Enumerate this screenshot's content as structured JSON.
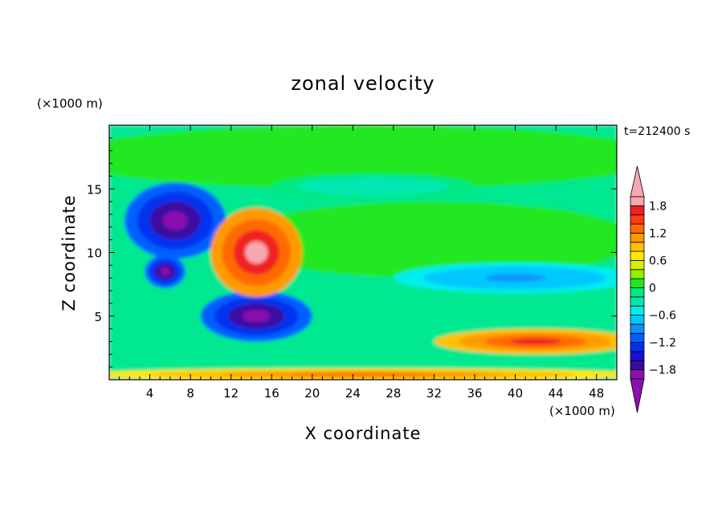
{
  "chart_data": {
    "type": "heatmap",
    "title": "zonal velocity",
    "xlabel": "X coordinate",
    "ylabel": "Z coordinate",
    "x_unit": "(×1000 m)",
    "y_unit": "(×1000 m)",
    "time_label": "t=212400 s",
    "xlim": [
      0,
      50
    ],
    "ylim": [
      0,
      20
    ],
    "x_ticks": [
      4,
      8,
      12,
      16,
      20,
      24,
      28,
      32,
      36,
      40,
      44,
      48
    ],
    "y_ticks": [
      5,
      10,
      15
    ],
    "colorbar": {
      "levels": [
        -2.0,
        -1.8,
        -1.6,
        -1.4,
        -1.2,
        -1.0,
        -0.8,
        -0.6,
        -0.4,
        -0.2,
        0,
        0.2,
        0.4,
        0.6,
        0.8,
        1.0,
        1.2,
        1.4,
        1.6,
        1.8,
        2.0
      ],
      "tick_labels": [
        "1.8",
        "1.2",
        "0.6",
        "0",
        "−0.6",
        "−1.2",
        "−1.8"
      ],
      "tick_values": [
        1.8,
        1.2,
        0.6,
        0,
        -0.6,
        -1.2,
        -1.8
      ],
      "colors": [
        "#8a10b0",
        "#3a0aa0",
        "#1a10d0",
        "#0030f0",
        "#0060ff",
        "#1090ff",
        "#00c8ff",
        "#00eeee",
        "#00e8b0",
        "#00e880",
        "#20e820",
        "#90f000",
        "#d8f000",
        "#ffe800",
        "#ffc000",
        "#ff9a00",
        "#ff6a00",
        "#ff3a10",
        "#f02020",
        "#f8a8b0"
      ],
      "extend_low_color": "#8a10b0",
      "extend_high_color": "#f8a8b0"
    },
    "background_color": "#00e890",
    "features": [
      {
        "name": "upper layer",
        "x": 25,
        "z": 17.5,
        "rx": 30,
        "rz": 2.5,
        "u": 0.05
      },
      {
        "name": "easterly band",
        "x": 32,
        "z": 11,
        "rx": 20,
        "rz": 3,
        "u": 0.1
      },
      {
        "name": "jet core",
        "x": 26,
        "z": 15.2,
        "rx": 10,
        "rz": 1,
        "u": -0.3
      },
      {
        "name": "negative cell upper",
        "x": 6.5,
        "z": 12.5,
        "rx": 5,
        "rz": 3,
        "u": -2.0
      },
      {
        "name": "negative cell middle",
        "x": 5.5,
        "z": 8.5,
        "rx": 2,
        "rz": 1.3,
        "u": -2.0
      },
      {
        "name": "negative cell lower",
        "x": 14.5,
        "z": 5,
        "rx": 5.5,
        "rz": 2,
        "u": -2.0
      },
      {
        "name": "positive cell",
        "x": 14.5,
        "z": 10,
        "rx": 4.5,
        "rz": 3.5,
        "u": 2.0
      },
      {
        "name": "mid blue band",
        "x": 40,
        "z": 8,
        "rx": 12,
        "rz": 1.2,
        "u": -0.9
      },
      {
        "name": "low-level shear",
        "x": 42,
        "z": 3,
        "rx": 10,
        "rz": 1,
        "u": 1.6
      },
      {
        "name": "surface layer",
        "x": 25,
        "z": 0.4,
        "rx": 28,
        "rz": 0.5,
        "u": 1.2
      }
    ]
  }
}
